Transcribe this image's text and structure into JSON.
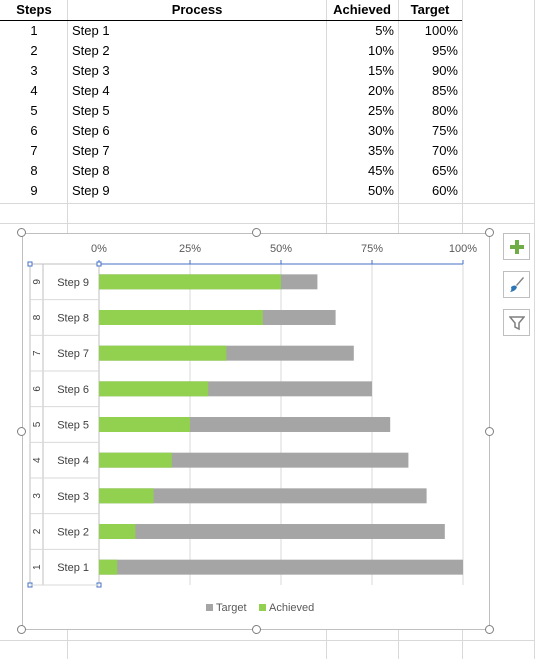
{
  "table": {
    "headers": {
      "steps": "Steps",
      "process": "Process",
      "achieved": "Achieved",
      "target": "Target"
    },
    "rows": [
      {
        "step": "1",
        "process": "Step 1",
        "achieved": "5%",
        "target": "100%"
      },
      {
        "step": "2",
        "process": "Step 2",
        "achieved": "10%",
        "target": "95%"
      },
      {
        "step": "3",
        "process": "Step 3",
        "achieved": "15%",
        "target": "90%"
      },
      {
        "step": "4",
        "process": "Step 4",
        "achieved": "20%",
        "target": "85%"
      },
      {
        "step": "5",
        "process": "Step 5",
        "achieved": "25%",
        "target": "80%"
      },
      {
        "step": "6",
        "process": "Step 6",
        "achieved": "30%",
        "target": "75%"
      },
      {
        "step": "7",
        "process": "Step 7",
        "achieved": "35%",
        "target": "70%"
      },
      {
        "step": "8",
        "process": "Step 8",
        "achieved": "45%",
        "target": "65%"
      },
      {
        "step": "9",
        "process": "Step 9",
        "achieved": "50%",
        "target": "60%"
      }
    ]
  },
  "chart_data": {
    "type": "bar",
    "orientation": "horizontal",
    "categories": [
      "Step 1",
      "Step 2",
      "Step 3",
      "Step 4",
      "Step 5",
      "Step 6",
      "Step 7",
      "Step 8",
      "Step 9"
    ],
    "outer_categories": [
      "1",
      "2",
      "3",
      "4",
      "5",
      "6",
      "7",
      "8",
      "9"
    ],
    "series": [
      {
        "name": "Target",
        "values": [
          100,
          95,
          90,
          85,
          80,
          75,
          70,
          65,
          60
        ],
        "color": "#a5a5a5"
      },
      {
        "name": "Achieved",
        "values": [
          5,
          10,
          15,
          20,
          25,
          30,
          35,
          45,
          50
        ],
        "color": "#92d050"
      }
    ],
    "overlap": true,
    "xlim": [
      0,
      100
    ],
    "xticks": [
      "0%",
      "25%",
      "50%",
      "75%",
      "100%"
    ],
    "x_axis_position": "top",
    "grid": true,
    "legend": {
      "position": "bottom",
      "entries": [
        "Target",
        "Achieved"
      ]
    },
    "title": ""
  },
  "side_buttons": [
    {
      "icon": "plus-icon",
      "color": "#70ad47"
    },
    {
      "icon": "brush-icon",
      "color": "#2e75b6"
    },
    {
      "icon": "filter-icon",
      "color": "#7f7f7f"
    }
  ]
}
